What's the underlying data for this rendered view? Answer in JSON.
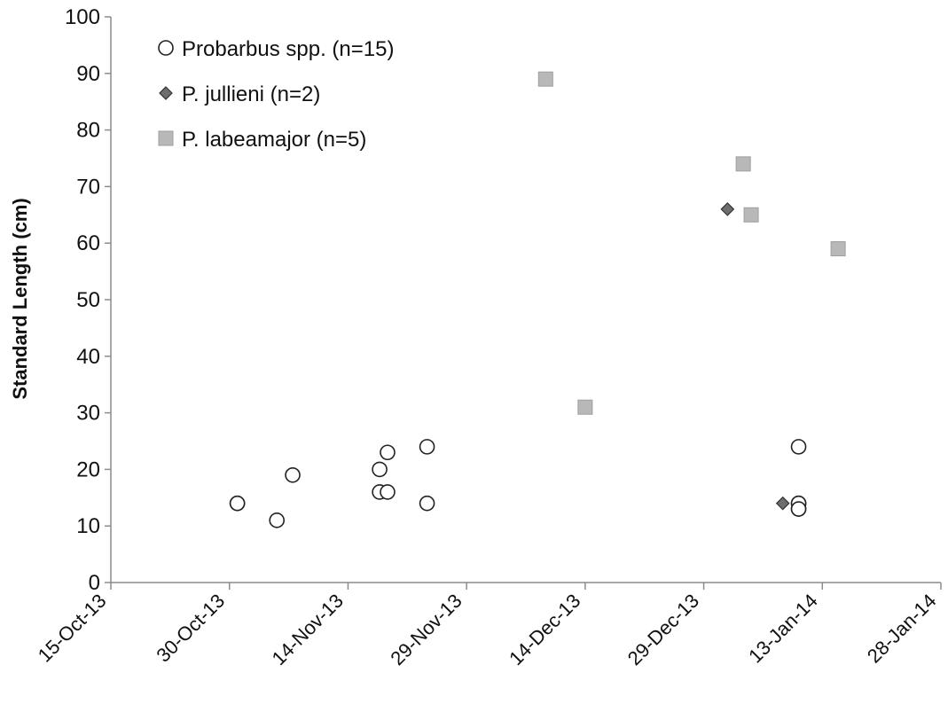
{
  "chart_data": {
    "type": "scatter",
    "title": "",
    "xlabel": "",
    "ylabel": "Standard Length (cm)",
    "x_type": "date",
    "xlim": [
      "2013-10-15",
      "2014-01-28"
    ],
    "ylim": [
      0,
      100
    ],
    "y_ticks": [
      0,
      10,
      20,
      30,
      40,
      50,
      60,
      70,
      80,
      90,
      100
    ],
    "x_ticks": [
      "2013-10-15",
      "2013-10-30",
      "2013-11-14",
      "2013-11-29",
      "2013-12-14",
      "2013-12-29",
      "2014-01-13",
      "2014-01-28"
    ],
    "x_tick_labels": [
      "15-Oct-13",
      "30-Oct-13",
      "14-Nov-13",
      "29-Nov-13",
      "14-Dec-13",
      "29-Dec-13",
      "13-Jan-14",
      "28-Jan-14"
    ],
    "grid": false,
    "legend_position": "top-left",
    "series": [
      {
        "name": "Probarbus spp. (n=15)",
        "marker": "circle",
        "fill": "#ffffff",
        "stroke": "#222222",
        "points": [
          {
            "x": "2013-10-31",
            "y": 14
          },
          {
            "x": "2013-10-31",
            "y": 14
          },
          {
            "x": "2013-11-05",
            "y": 11
          },
          {
            "x": "2013-11-07",
            "y": 19
          },
          {
            "x": "2013-11-18",
            "y": 20
          },
          {
            "x": "2013-11-18",
            "y": 16
          },
          {
            "x": "2013-11-19",
            "y": 16
          },
          {
            "x": "2013-11-19",
            "y": 23
          },
          {
            "x": "2013-11-24",
            "y": 24
          },
          {
            "x": "2013-11-24",
            "y": 14
          },
          {
            "x": "2014-01-10",
            "y": 24
          },
          {
            "x": "2014-01-10",
            "y": 14
          },
          {
            "x": "2014-01-10",
            "y": 13
          },
          {
            "x": "2014-01-10",
            "y": 14
          },
          {
            "x": "2014-01-10",
            "y": 13
          }
        ]
      },
      {
        "name": "P. jullieni (n=2)",
        "marker": "diamond",
        "fill": "#6e6e6e",
        "stroke": "#333333",
        "points": [
          {
            "x": "2014-01-01",
            "y": 66
          },
          {
            "x": "2014-01-08",
            "y": 14
          }
        ]
      },
      {
        "name": "P. labeamajor (n=5)",
        "marker": "square",
        "fill": "#b8b8b8",
        "stroke": "#9e9e9e",
        "points": [
          {
            "x": "2013-12-09",
            "y": 89
          },
          {
            "x": "2013-12-14",
            "y": 31
          },
          {
            "x": "2014-01-03",
            "y": 74
          },
          {
            "x": "2014-01-04",
            "y": 65
          },
          {
            "x": "2014-01-15",
            "y": 59
          }
        ]
      }
    ]
  }
}
